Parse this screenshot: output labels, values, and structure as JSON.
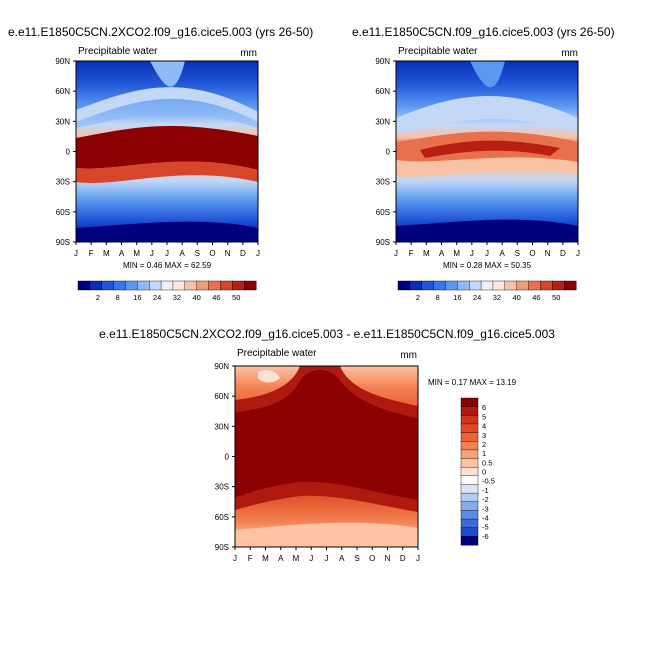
{
  "chart_data": [
    {
      "type": "heatmap",
      "id": "p1",
      "title": "e.e11.E1850C5CN.2XCO2.f09_g16.cice5.003 (yrs 26-50)",
      "left_label": "Precipitable water",
      "right_label": "mm",
      "x_ticks": [
        "J",
        "F",
        "M",
        "A",
        "M",
        "J",
        "J",
        "A",
        "S",
        "O",
        "N",
        "D",
        "J"
      ],
      "y_ticks": [
        "90N",
        "60N",
        "30N",
        "0",
        "30S",
        "60S",
        "90S"
      ],
      "ylim": [
        -90,
        90
      ],
      "stats": "MIN =   0.46 MAX =  62.59",
      "min": 0.46,
      "max": 62.59,
      "colorbar": {
        "orientation": "horizontal",
        "labels": [
          "2",
          "8",
          "16",
          "24",
          "32",
          "40",
          "46",
          "50"
        ],
        "colors": [
          "#00007f",
          "#0a2db8",
          "#1f55d6",
          "#3478ea",
          "#5a98f2",
          "#8fbaf5",
          "#c3d8f7",
          "#ecf0fa",
          "#fbe7dd",
          "#f7c2a6",
          "#f19b77",
          "#e8704c",
          "#d7452a",
          "#b81e12",
          "#8b0000"
        ]
      }
    },
    {
      "type": "heatmap",
      "id": "p2",
      "title": "e.e11.E1850C5CN.f09_g16.cice5.003 (yrs 26-50)",
      "left_label": "Precipitable water",
      "right_label": "mm",
      "x_ticks": [
        "J",
        "F",
        "M",
        "A",
        "M",
        "J",
        "J",
        "A",
        "S",
        "O",
        "N",
        "D",
        "J"
      ],
      "y_ticks": [
        "90N",
        "60N",
        "30N",
        "0",
        "30S",
        "60S",
        "90S"
      ],
      "ylim": [
        -90,
        90
      ],
      "stats": "MIN =   0.28 MAX =  50.35",
      "min": 0.28,
      "max": 50.35,
      "colorbar": {
        "orientation": "horizontal",
        "labels": [
          "2",
          "8",
          "16",
          "24",
          "32",
          "40",
          "46",
          "50"
        ],
        "colors": [
          "#00007f",
          "#0a2db8",
          "#1f55d6",
          "#3478ea",
          "#5a98f2",
          "#8fbaf5",
          "#c3d8f7",
          "#ecf0fa",
          "#fbe7dd",
          "#f7c2a6",
          "#f19b77",
          "#e8704c",
          "#d7452a",
          "#b81e12",
          "#8b0000"
        ]
      }
    },
    {
      "type": "heatmap",
      "id": "p3",
      "title": "e.e11.E1850C5CN.2XCO2.f09_g16.cice5.003 - e.e11.E1850C5CN.f09_g16.cice5.003",
      "left_label": "Precipitable water",
      "right_label": "mm",
      "x_ticks": [
        "J",
        "F",
        "M",
        "A",
        "M",
        "J",
        "J",
        "A",
        "S",
        "O",
        "N",
        "D",
        "J"
      ],
      "y_ticks": [
        "90N",
        "60N",
        "30N",
        "0",
        "30S",
        "60S",
        "90S"
      ],
      "ylim": [
        -90,
        90
      ],
      "stats": "MIN =   0.17 MAX =  13.19",
      "min": 0.17,
      "max": 13.19,
      "colorbar": {
        "orientation": "vertical",
        "labels": [
          "6",
          "5",
          "4",
          "3",
          "2",
          "1",
          "0.5",
          "0",
          "-0.5",
          "-1",
          "-2",
          "-3",
          "-4",
          "-5",
          "-6"
        ],
        "colors": [
          "#8b0000",
          "#b01a0e",
          "#cc3318",
          "#e04a24",
          "#ed6336",
          "#f48152",
          "#f9a27a",
          "#fcc3a4",
          "#fde2d1",
          "#ffffff",
          "#d9e6f7",
          "#b3cdf2",
          "#86acec",
          "#5b8be3",
          "#3a6bd9",
          "#1f4ccf",
          "#00007f"
        ]
      }
    }
  ]
}
